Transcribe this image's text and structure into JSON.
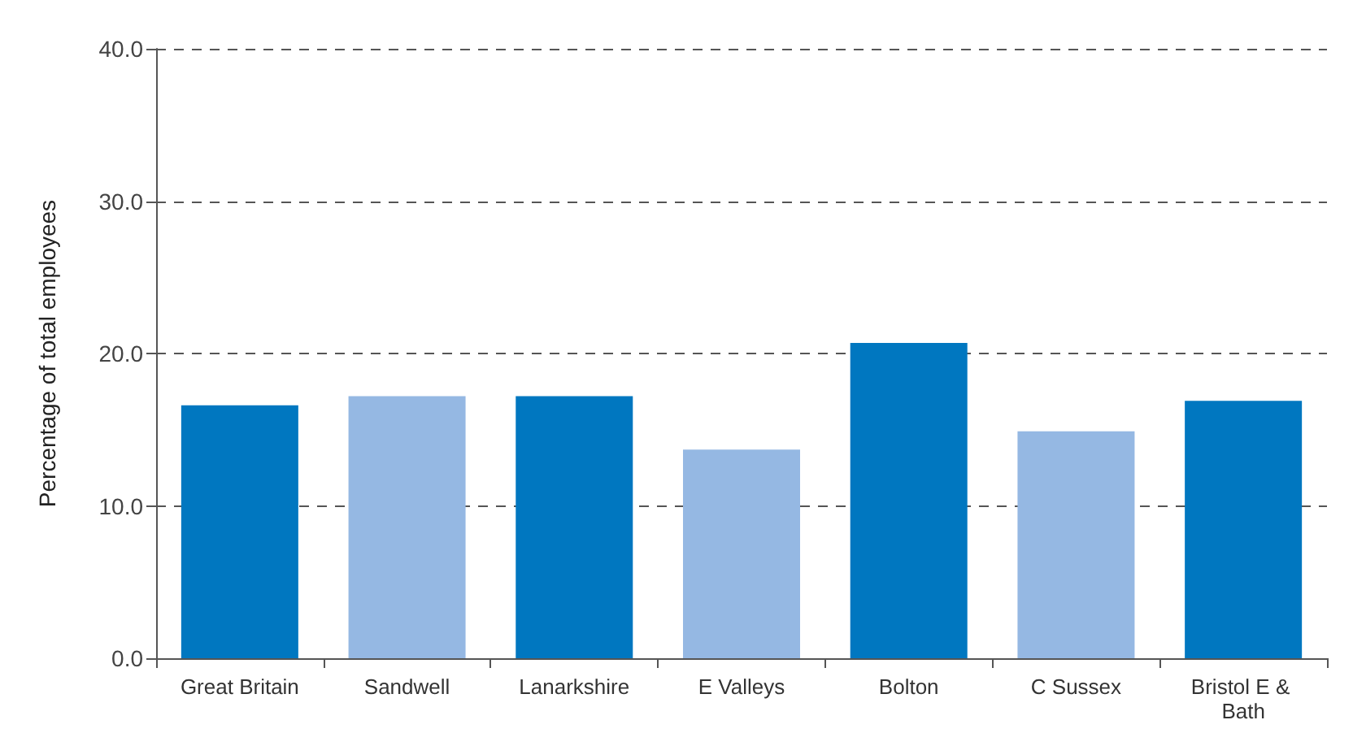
{
  "chart_data": {
    "type": "bar",
    "ylabel": "Percentage of total employees",
    "categories": [
      "Great Britain",
      "Sandwell",
      "Lanarkshire",
      "E Valleys",
      "Bolton",
      "C Sussex",
      "Bristol E & Bath"
    ],
    "values": [
      16.6,
      17.2,
      17.2,
      13.7,
      20.7,
      14.9,
      16.9
    ],
    "colors": [
      "#0077c0",
      "#95b8e3",
      "#0077c0",
      "#95b8e3",
      "#0077c0",
      "#95b8e3",
      "#0077c0"
    ],
    "ylim": [
      0,
      40
    ],
    "yticks": [
      {
        "value": 0,
        "label": "0.0"
      },
      {
        "value": 10,
        "label": "10.0"
      },
      {
        "value": 20,
        "label": "20.0"
      },
      {
        "value": 30,
        "label": "30.0"
      },
      {
        "value": 40,
        "label": "40.0"
      }
    ],
    "grid": "y"
  }
}
